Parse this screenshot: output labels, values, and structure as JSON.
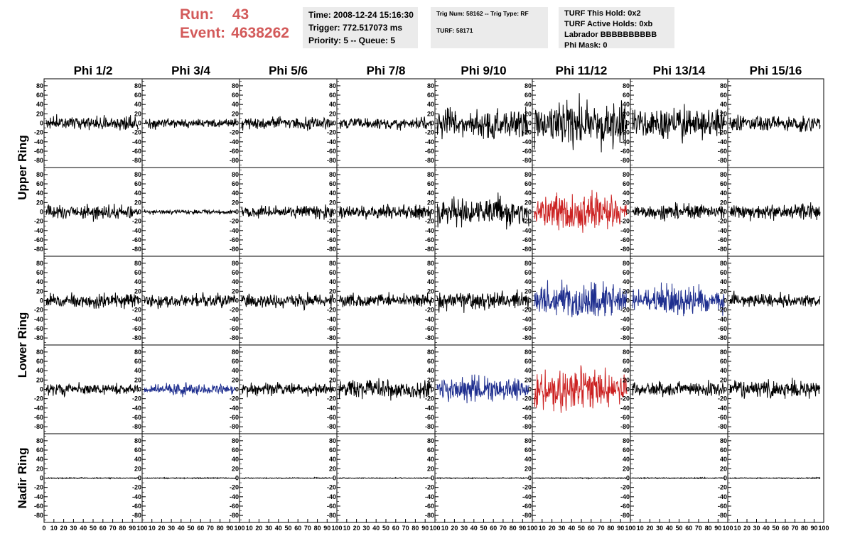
{
  "header": {
    "run_label": "Run:",
    "run_value": "43",
    "event_label": "Event:",
    "event_value": "4638262",
    "accent_color": "#d35a5a"
  },
  "info_time": {
    "time": "Time: 2008-12-24 15:16:30",
    "trigger": "Trigger: 772.517073 ms",
    "priority": "Priority: 5 -- Queue: 5"
  },
  "info_trig": {
    "trig": "Trig Num: 58162 -- Trig Type: RF",
    "turf": "TURF: 58171"
  },
  "info_turf": {
    "hold": "TURF This Hold: 0x2",
    "active": "TURF Active Holds: 0xb",
    "labrador": "Labrador BBBBBBBBBB",
    "phimask": "Phi Mask: 0"
  },
  "chart_data": {
    "type": "line",
    "columns": [
      "Phi 1/2",
      "Phi 3/4",
      "Phi 5/6",
      "Phi 7/8",
      "Phi 9/10",
      "Phi 11/12",
      "Phi 13/14",
      "Phi 15/16"
    ],
    "row_groups": [
      {
        "label": "Upper Ring",
        "rows": [
          0,
          1
        ]
      },
      {
        "label": "Lower Ring",
        "rows": [
          2,
          3
        ]
      },
      {
        "label": "Nadir Ring",
        "rows": [
          4
        ]
      }
    ],
    "ylim": [
      -95,
      95
    ],
    "yticks": [
      80,
      60,
      40,
      20,
      0,
      -20,
      -40,
      -60,
      -80
    ],
    "xlim": [
      0,
      100
    ],
    "xticks": [
      0,
      10,
      20,
      30,
      40,
      50,
      60,
      70,
      80,
      90,
      100
    ],
    "colors": {
      "normal": "#000000",
      "trigger_blue": "#1f2f8f",
      "trigger_red": "#cc2222"
    },
    "panels": [
      [
        {
          "amp": 13,
          "color": "normal"
        },
        {
          "amp": 9,
          "color": "normal"
        },
        {
          "amp": 12,
          "color": "normal"
        },
        {
          "amp": 12,
          "color": "normal"
        },
        {
          "amp": 28,
          "color": "normal"
        },
        {
          "amp": 42,
          "color": "normal"
        },
        {
          "amp": 32,
          "color": "normal"
        },
        {
          "amp": 16,
          "color": "normal"
        }
      ],
      [
        {
          "amp": 13,
          "color": "normal"
        },
        {
          "amp": 4,
          "color": "normal"
        },
        {
          "amp": 13,
          "color": "normal"
        },
        {
          "amp": 14,
          "color": "normal"
        },
        {
          "amp": 26,
          "color": "normal"
        },
        {
          "amp": 38,
          "color": "trigger_red"
        },
        {
          "amp": 14,
          "color": "normal"
        },
        {
          "amp": 15,
          "color": "normal"
        }
      ],
      [
        {
          "amp": 14,
          "color": "normal"
        },
        {
          "amp": 13,
          "color": "normal"
        },
        {
          "amp": 14,
          "color": "normal"
        },
        {
          "amp": 12,
          "color": "normal"
        },
        {
          "amp": 18,
          "color": "normal"
        },
        {
          "amp": 40,
          "color": "trigger_blue"
        },
        {
          "amp": 30,
          "color": "trigger_blue"
        },
        {
          "amp": 12,
          "color": "normal"
        }
      ],
      [
        {
          "amp": 11,
          "color": "normal"
        },
        {
          "amp": 12,
          "color": "trigger_blue"
        },
        {
          "amp": 12,
          "color": "normal"
        },
        {
          "amp": 18,
          "color": "normal"
        },
        {
          "amp": 26,
          "color": "trigger_blue"
        },
        {
          "amp": 45,
          "color": "trigger_red"
        },
        {
          "amp": 14,
          "color": "normal"
        },
        {
          "amp": 17,
          "color": "normal"
        }
      ],
      [
        {
          "amp": 1,
          "color": "normal"
        },
        {
          "amp": 1,
          "color": "normal"
        },
        {
          "amp": 1,
          "color": "normal"
        },
        {
          "amp": 1,
          "color": "normal"
        },
        {
          "amp": 1,
          "color": "normal"
        },
        {
          "amp": 1,
          "color": "normal"
        },
        {
          "amp": 1,
          "color": "normal"
        },
        {
          "amp": 1,
          "color": "normal"
        }
      ]
    ]
  }
}
